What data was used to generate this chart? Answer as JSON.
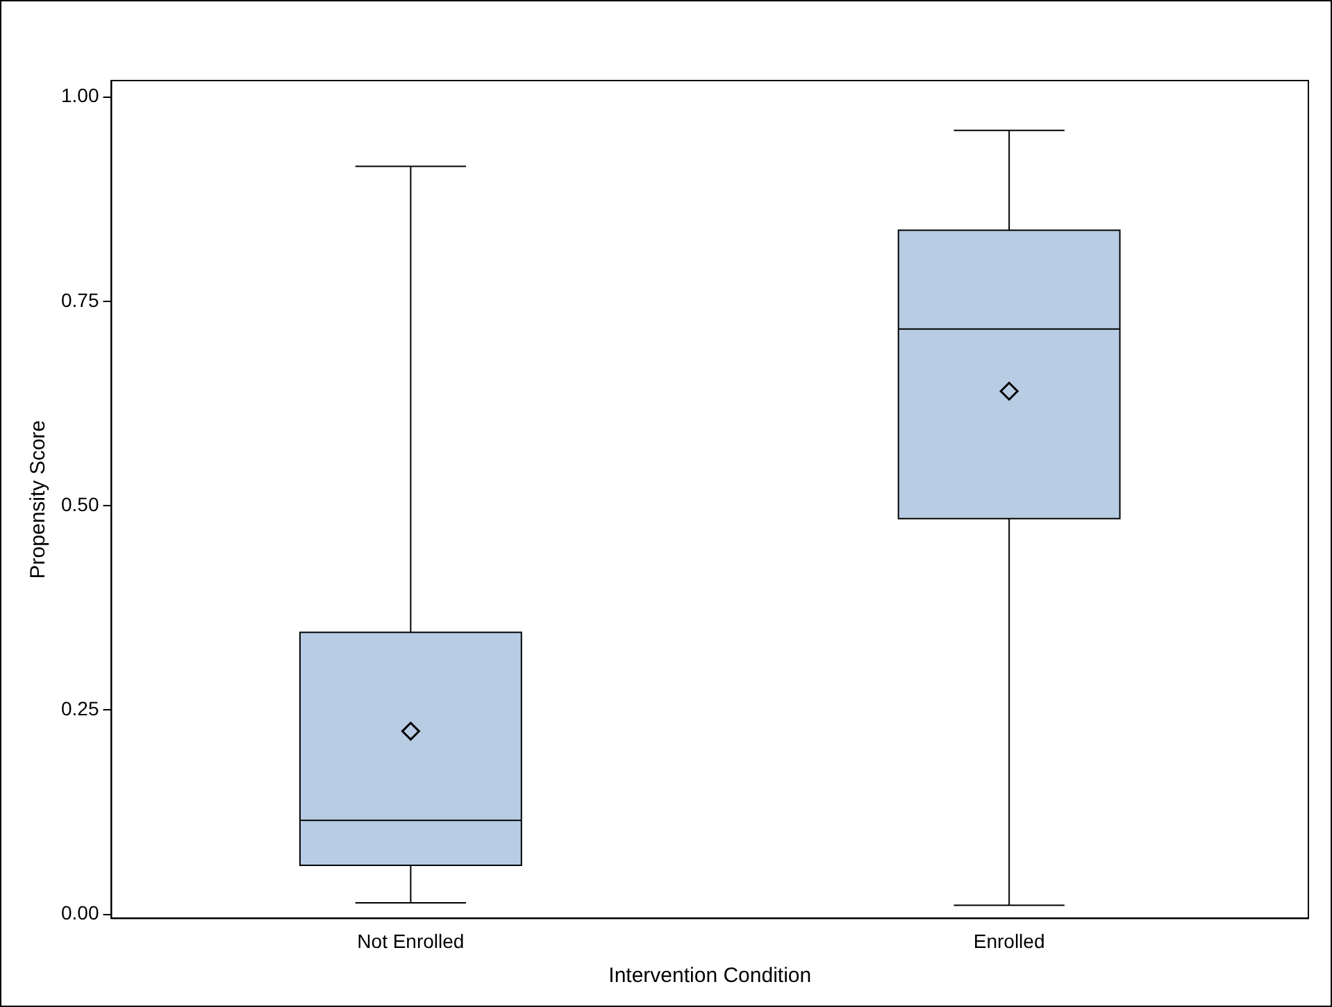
{
  "chart_data": {
    "type": "box",
    "xlabel": "Intervention Condition",
    "ylabel": "Propensity Score",
    "categories": [
      "Not Enrolled",
      "Enrolled"
    ],
    "boxes": [
      {
        "low": 0.014,
        "q1": 0.06,
        "median": 0.115,
        "q3": 0.345,
        "high": 0.915,
        "mean": 0.224
      },
      {
        "low": 0.011,
        "q1": 0.484,
        "median": 0.716,
        "q3": 0.837,
        "high": 0.959,
        "mean": 0.64
      }
    ],
    "color": "#b8cce4",
    "marker": "diamond",
    "grid": false,
    "legend": false,
    "ylim": [
      -0.005,
      1.02
    ],
    "yticks": [
      {
        "value": 0,
        "label": "0.00"
      },
      {
        "value": 0.25,
        "label": "0.25"
      },
      {
        "value": 0.5,
        "label": "0.50"
      },
      {
        "value": 0.75,
        "label": "0.75"
      },
      {
        "value": 1,
        "label": "1.00"
      }
    ]
  }
}
